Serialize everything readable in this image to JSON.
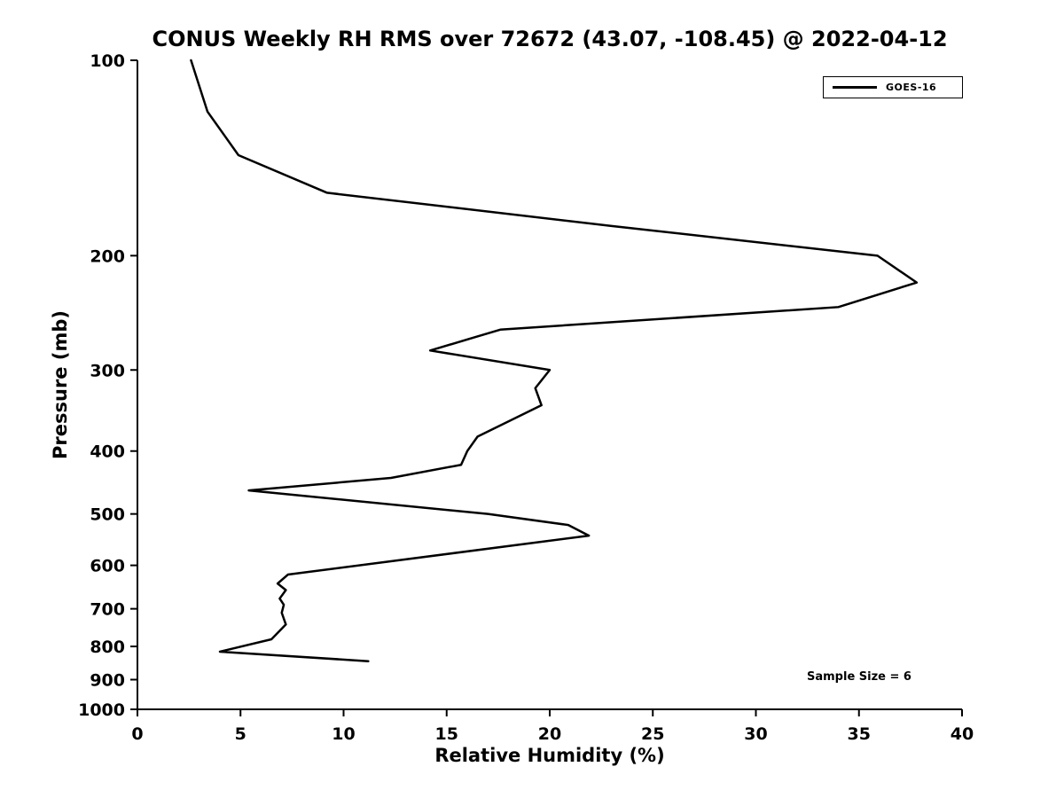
{
  "chart_data": {
    "type": "line",
    "title": "CONUS Weekly RH RMS over 72672 (43.07, -108.45) @ 2022-04-12",
    "xlabel": "Relative Humidity (%)",
    "ylabel": "Pressure (mb)",
    "x_ticks": [
      0,
      5,
      10,
      15,
      20,
      25,
      30,
      35,
      40
    ],
    "y_ticks": [
      100,
      200,
      300,
      400,
      500,
      600,
      700,
      800,
      900,
      1000
    ],
    "xlim": [
      0,
      40
    ],
    "ylim": [
      100,
      1000
    ],
    "y_scale": "log",
    "y_inverted": true,
    "grid": false,
    "legend_position": "upper right",
    "annotation": "Sample Size = 6",
    "sample_size": 6,
    "line_color": "#000000",
    "series": [
      {
        "name": "GOES-16",
        "color": "#000000",
        "points_format": "[relative_humidity_percent, pressure_mb]",
        "points": [
          [
            2.6,
            100
          ],
          [
            3.4,
            120
          ],
          [
            4.9,
            140
          ],
          [
            9.2,
            160
          ],
          [
            23.0,
            180
          ],
          [
            35.9,
            200
          ],
          [
            37.8,
            220
          ],
          [
            34.0,
            240
          ],
          [
            17.6,
            260
          ],
          [
            14.2,
            280
          ],
          [
            20.0,
            300
          ],
          [
            19.3,
            320
          ],
          [
            19.6,
            340
          ],
          [
            16.5,
            380
          ],
          [
            16.0,
            400
          ],
          [
            15.7,
            420
          ],
          [
            12.3,
            440
          ],
          [
            5.4,
            460
          ],
          [
            17.0,
            500
          ],
          [
            20.9,
            520
          ],
          [
            21.9,
            540
          ],
          [
            7.3,
            620
          ],
          [
            6.8,
            640
          ],
          [
            7.2,
            655
          ],
          [
            6.9,
            675
          ],
          [
            7.1,
            690
          ],
          [
            7.0,
            710
          ],
          [
            7.2,
            740
          ],
          [
            6.5,
            780
          ],
          [
            4.0,
            815
          ],
          [
            11.2,
            843
          ]
        ]
      }
    ]
  }
}
